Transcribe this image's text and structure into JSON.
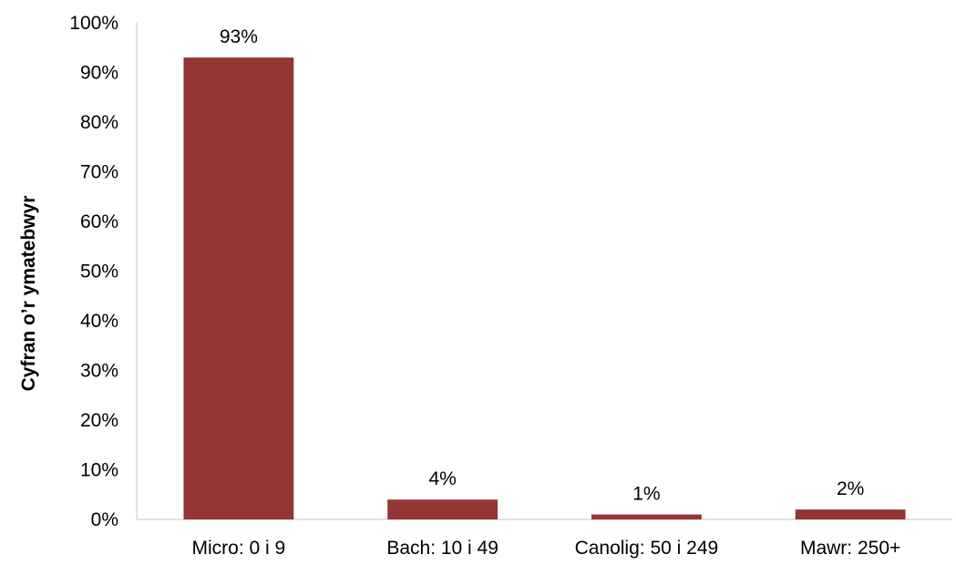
{
  "chart_data": {
    "type": "bar",
    "categories": [
      "Micro: 0 i 9",
      "Bach: 10 i 49",
      "Canolig: 50 i 249",
      "Mawr: 250+"
    ],
    "values": [
      93,
      4,
      1,
      2
    ],
    "data_labels": [
      "93%",
      "4%",
      "1%",
      "2%"
    ],
    "title": "",
    "xlabel": "",
    "ylabel": "Cyfran o’r ymatebwyr",
    "ylim": [
      0,
      100
    ],
    "y_ticks": [
      0,
      10,
      20,
      30,
      40,
      50,
      60,
      70,
      80,
      90,
      100
    ],
    "y_tick_labels": [
      "0%",
      "10%",
      "20%",
      "30%",
      "40%",
      "50%",
      "60%",
      "70%",
      "80%",
      "90%",
      "100%"
    ],
    "grid": false,
    "legend": "none",
    "colors": {
      "bar": "#943634",
      "axis": "#d9d9d9"
    }
  }
}
